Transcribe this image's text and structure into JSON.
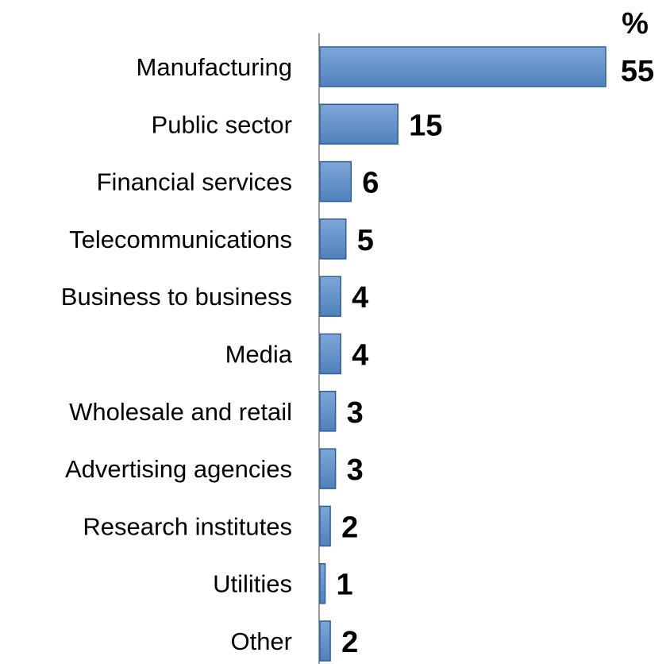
{
  "chart_data": {
    "type": "bar",
    "orientation": "horizontal",
    "unit_label": "%",
    "categories": [
      "Manufacturing",
      "Public sector",
      "Financial services",
      "Telecommunications",
      "Business to business",
      "Media",
      "Wholesale and retail",
      "Advertising agencies",
      "Research institutes",
      "Utilities",
      "Other"
    ],
    "values": [
      55,
      15,
      6,
      5,
      4,
      4,
      3,
      3,
      2,
      1,
      2
    ],
    "xlim": [
      0,
      55
    ],
    "grid": false,
    "legend": "none",
    "bar_color": "#4f81bd",
    "bar_color_light": "#7fa6d8",
    "bar_color_dark": "#2f5f96"
  }
}
